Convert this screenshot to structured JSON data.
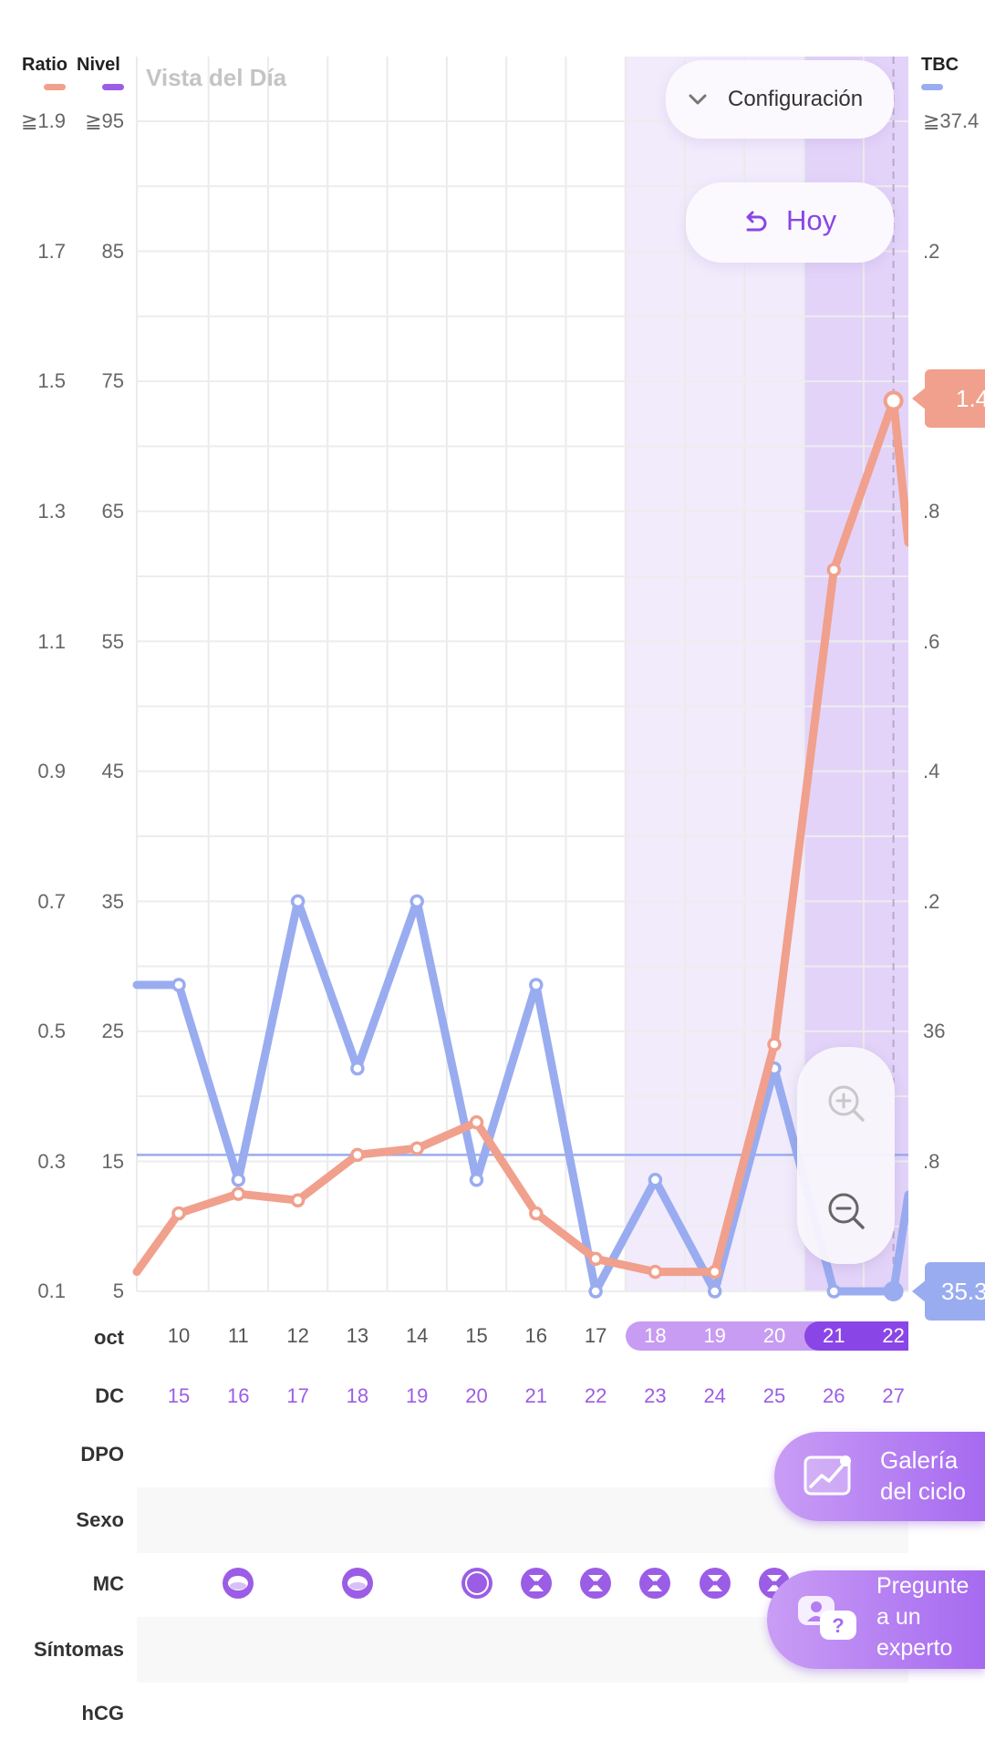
{
  "header": {
    "ratio_label": "Ratio",
    "nivel_label": "Nivel",
    "view_title": "Vista del Día",
    "tbc_label": "TBC",
    "ratio_max": "≧1.9",
    "nivel_max": "≧95",
    "tbc_max": "≧37.4"
  },
  "config_button": {
    "label": "Configuración",
    "icon": "chevron-down-icon"
  },
  "today_button": {
    "label": "Hoy",
    "icon": "undo-icon"
  },
  "zoom": {
    "in_icon": "zoom-in-icon",
    "out_icon": "zoom-out-icon"
  },
  "callouts": {
    "ratio_value": "1.4",
    "tbc_value": "35.3"
  },
  "rows": {
    "month": "oct",
    "dc": "DC",
    "dpo": "DPO",
    "sexo": "Sexo",
    "mc": "MC",
    "sintomas": "Síntomas",
    "hcg": "hCG"
  },
  "fab": {
    "gallery": "Galería del ciclo",
    "gallery_line1": "Galería",
    "gallery_line2": "del ciclo",
    "expert_line1": "Pregunte",
    "expert_line2": "a un",
    "expert_line3": "experto"
  },
  "colors": {
    "ratio": "#f0a08c",
    "nivel": "#9b5de5",
    "tbc": "#9aacf0",
    "accent": "#8a45e6",
    "band_light": "#f1ebfc",
    "band_dark": "#e3d3f9"
  },
  "chart_data": {
    "type": "line",
    "x_day_of_month": [
      "10",
      "11",
      "12",
      "13",
      "14",
      "15",
      "16",
      "17",
      "18",
      "19",
      "20",
      "21",
      "22"
    ],
    "x_cycle_day": [
      "15",
      "16",
      "17",
      "18",
      "19",
      "20",
      "21",
      "22",
      "23",
      "24",
      "25",
      "26",
      "27"
    ],
    "highlighted_days_light": [
      "18",
      "19",
      "20"
    ],
    "highlighted_days_dark": [
      "21",
      "22"
    ],
    "ratio_ticks": [
      "0.1",
      "0.3",
      "0.5",
      "0.7",
      "0.9",
      "1.1",
      "1.3",
      "1.5",
      "1.7"
    ],
    "nivel_ticks": [
      "5",
      "15",
      "25",
      "35",
      "45",
      "55",
      "65",
      "75",
      "85"
    ],
    "tbc_ticks": [
      "36",
      ".2",
      ".4",
      ".6",
      ".8",
      ".2",
      ".8"
    ],
    "ratio_range": [
      0.1,
      1.9
    ],
    "tbc_range": [
      35.3,
      37.4
    ],
    "series": [
      {
        "name": "Ratio",
        "axis": "ratio",
        "values": [
          0.22,
          0.25,
          0.24,
          0.31,
          0.32,
          0.36,
          0.22,
          0.15,
          0.13,
          0.13,
          0.48,
          1.21,
          1.47
        ],
        "leading_value": 0.13
      },
      {
        "name": "TBC",
        "axis": "tbc",
        "values": [
          35.85,
          35.5,
          36.0,
          35.7,
          36.0,
          35.5,
          35.85,
          35.3,
          35.5,
          35.3,
          35.7,
          35.3,
          35.3
        ],
        "leading_value": 35.85
      }
    ],
    "reference_line": {
      "axis": "ratio",
      "value": 0.31
    },
    "mc_days": [
      "11",
      "13",
      "15",
      "16",
      "17",
      "18",
      "19",
      "20"
    ],
    "mc_icon_types": [
      "cloudy",
      "cloudy",
      "solid",
      "hourglass",
      "hourglass",
      "hourglass",
      "hourglass",
      "hourglass"
    ]
  }
}
